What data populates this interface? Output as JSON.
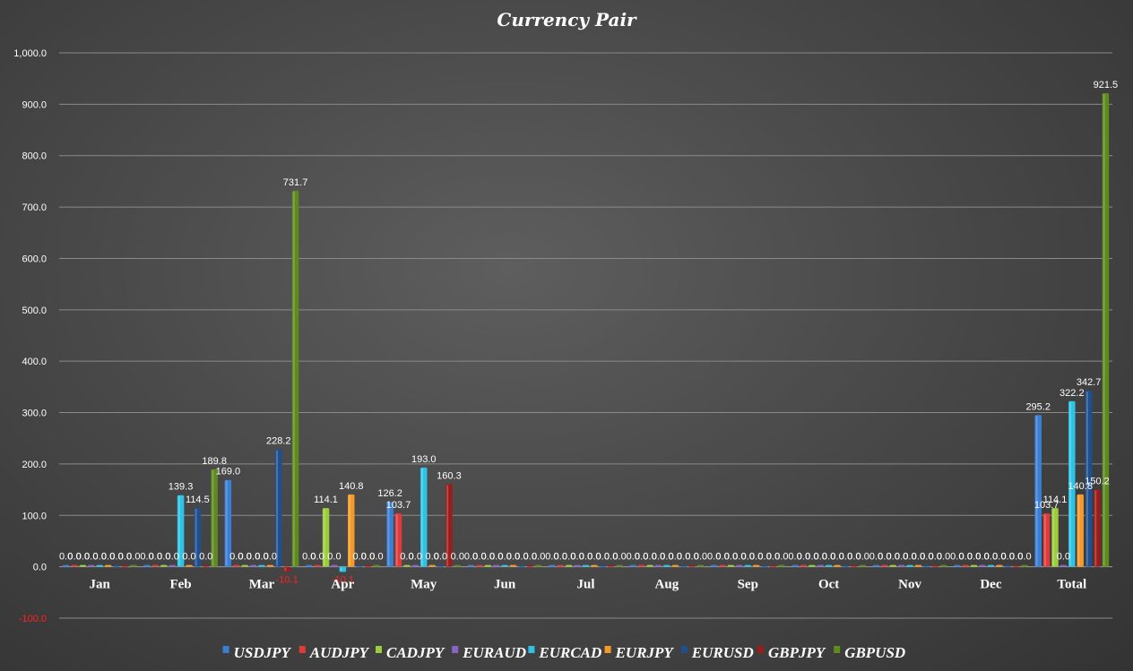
{
  "chart_data": {
    "type": "bar",
    "title": "Currency Pair",
    "categories": [
      "Jan",
      "Feb",
      "Mar",
      "Apr",
      "May",
      "Jun",
      "Jul",
      "Aug",
      "Sep",
      "Oct",
      "Nov",
      "Dec",
      "Total"
    ],
    "ylim": [
      -100,
      1000
    ],
    "yticks": [
      -100,
      0,
      100,
      200,
      300,
      400,
      500,
      600,
      700,
      800,
      900,
      1000
    ],
    "ytick_labels": [
      "-100.0",
      "0.0",
      "100.0",
      "200.0",
      "300.0",
      "400.0",
      "500.0",
      "600.0",
      "700.0",
      "800.0",
      "900.0",
      "1,000.0"
    ],
    "grid": true,
    "legend_position": "bottom",
    "series": [
      {
        "name": "USDJPY",
        "color": "#3a7fd5",
        "values": [
          0,
          0,
          169.0,
          0,
          126.2,
          0,
          0,
          0,
          0,
          0,
          0,
          0,
          295.2
        ]
      },
      {
        "name": "AUDJPY",
        "color": "#e03a3a",
        "values": [
          0,
          0,
          0,
          0,
          103.7,
          0,
          0,
          0,
          0,
          0,
          0,
          0,
          103.7
        ]
      },
      {
        "name": "CADJPY",
        "color": "#9bcc3c",
        "values": [
          0,
          0,
          0,
          114.1,
          0,
          0,
          0,
          0,
          0,
          0,
          0,
          0,
          114.1
        ]
      },
      {
        "name": "EURAUD",
        "color": "#8a63c9",
        "values": [
          0,
          0,
          0,
          0,
          0,
          0,
          0,
          0,
          0,
          0,
          0,
          0,
          0
        ]
      },
      {
        "name": "EURCAD",
        "color": "#2ec3e6",
        "values": [
          0,
          139.3,
          0,
          -10.1,
          193.0,
          0,
          0,
          0,
          0,
          0,
          0,
          0,
          322.2
        ]
      },
      {
        "name": "EURJPY",
        "color": "#f39a2a",
        "values": [
          0,
          0,
          0,
          140.8,
          0,
          0,
          0,
          0,
          0,
          0,
          0,
          0,
          140.8
        ]
      },
      {
        "name": "EURUSD",
        "color": "#1f4f8f",
        "values": [
          0,
          114.5,
          228.2,
          0,
          0,
          0,
          0,
          0,
          0,
          0,
          0,
          0,
          342.7
        ]
      },
      {
        "name": "GBPJPY",
        "color": "#9c1c1c",
        "values": [
          0,
          0,
          -10.1,
          0,
          160.3,
          0,
          0,
          0,
          0,
          0,
          0,
          0,
          150.2
        ]
      },
      {
        "name": "GBPUSD",
        "color": "#5e8a1e",
        "values": [
          0,
          189.8,
          731.7,
          0,
          0,
          0,
          0,
          0,
          0,
          0,
          0,
          0,
          921.5
        ]
      }
    ]
  }
}
